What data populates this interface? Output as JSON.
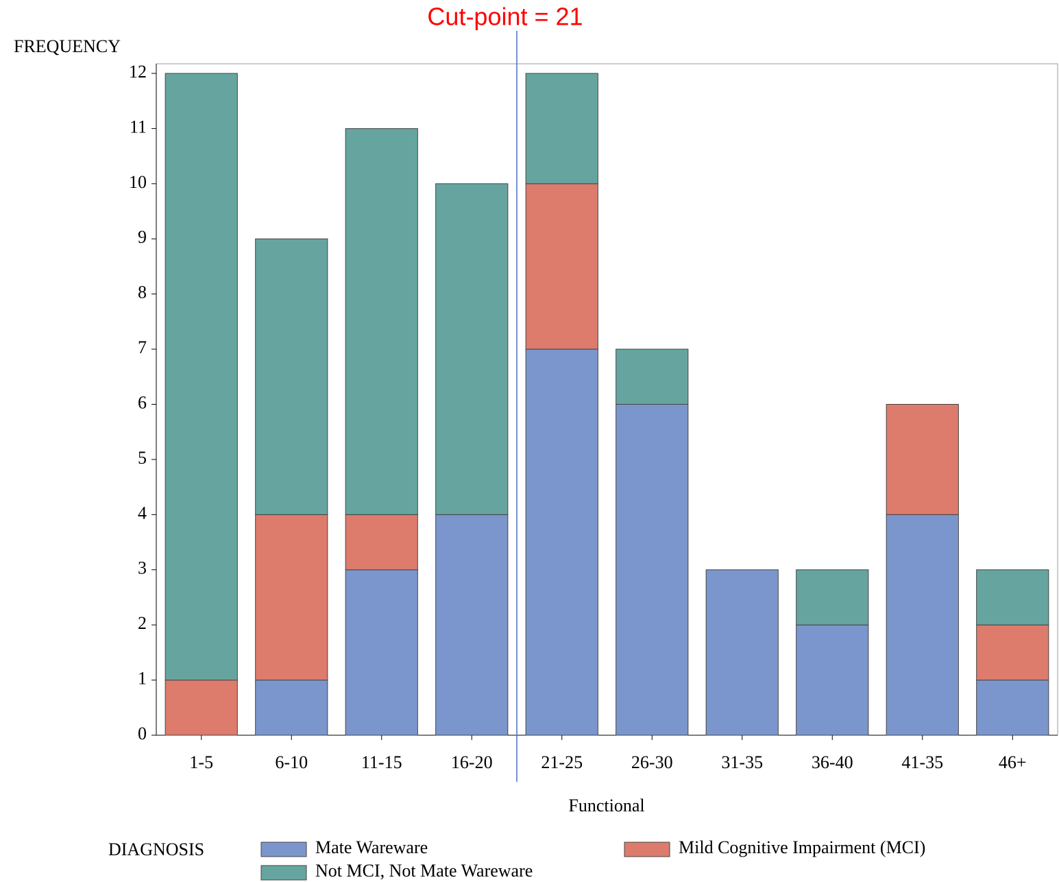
{
  "chart_data": {
    "type": "stacked_bar",
    "annotation": "Cut-point = 21",
    "y_label": "FREQUENCY",
    "x_label": "Functional",
    "legend_title": "DIAGNOSIS",
    "categories": [
      "1-5",
      "6-10",
      "11-15",
      "16-20",
      "21-25",
      "26-30",
      "31-35",
      "36-40",
      "41-35",
      "46+"
    ],
    "series": [
      {
        "name": "Mate Wareware",
        "color": "#7b96cc",
        "values": [
          0,
          1,
          3,
          4,
          7,
          6,
          3,
          2,
          4,
          1
        ]
      },
      {
        "name": "Mild Cognitive Impairment (MCI)",
        "color": "#dd7b6c",
        "values": [
          1,
          3,
          1,
          0,
          3,
          0,
          0,
          0,
          2,
          1
        ]
      },
      {
        "name": "Not MCI, Not Mate Wareware",
        "color": "#66a59f",
        "values": [
          11,
          5,
          7,
          6,
          2,
          1,
          0,
          1,
          0,
          1
        ]
      }
    ],
    "ylim": [
      0,
      12
    ],
    "yticks": [
      0,
      1,
      2,
      3,
      4,
      5,
      6,
      7,
      8,
      9,
      10,
      11,
      12
    ]
  }
}
